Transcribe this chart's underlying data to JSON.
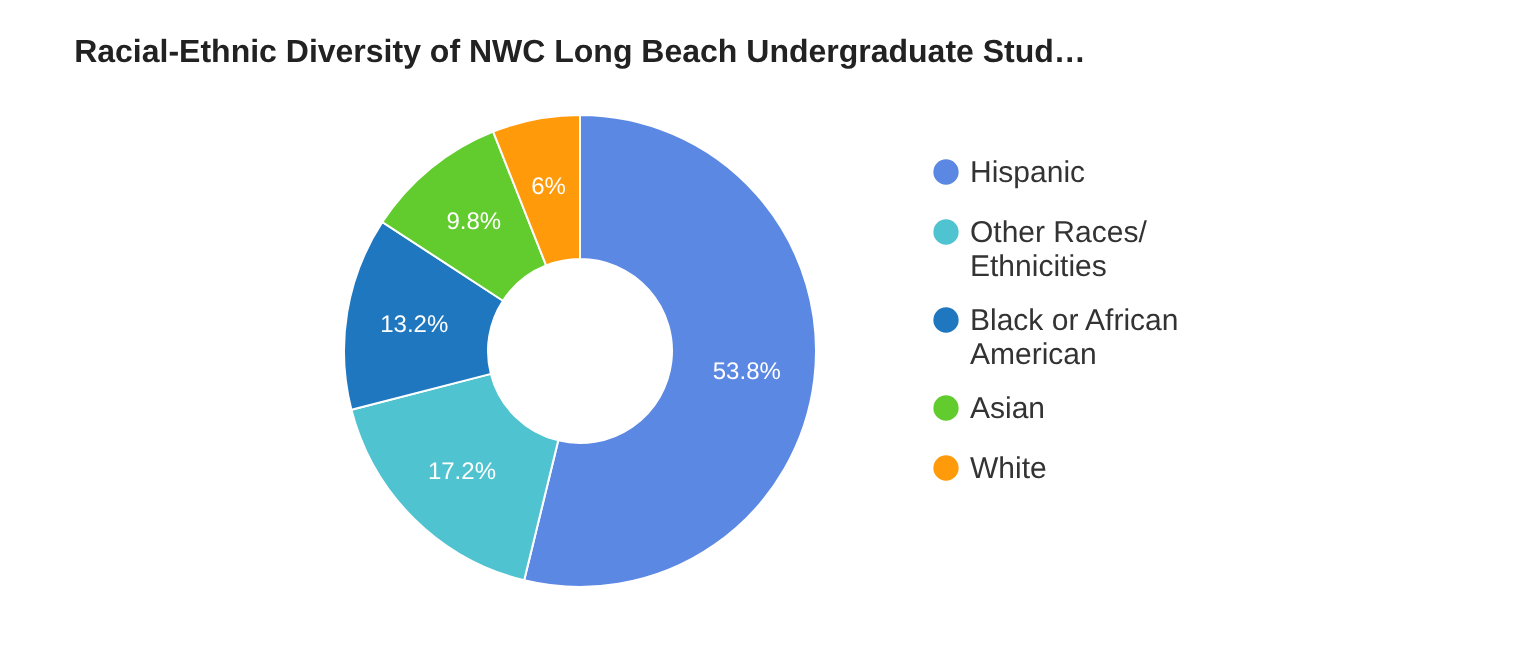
{
  "chart_data": {
    "type": "donut",
    "title": "Racial-Ethnic Diversity of NWC Long Beach Undergraduate Stud…",
    "categories": [
      "Hispanic",
      "Other Races/ Ethnicities",
      "Black or African American",
      "Asian",
      "White"
    ],
    "values": [
      53.8,
      17.2,
      13.2,
      9.8,
      6
    ],
    "colors": [
      "#5b88e3",
      "#4fc3cf",
      "#1f77c0",
      "#62cc2f",
      "#ff9a0a"
    ],
    "value_labels": [
      "53.8%",
      "17.2%",
      "13.2%",
      "9.8%",
      "6%"
    ],
    "legend": "right"
  }
}
